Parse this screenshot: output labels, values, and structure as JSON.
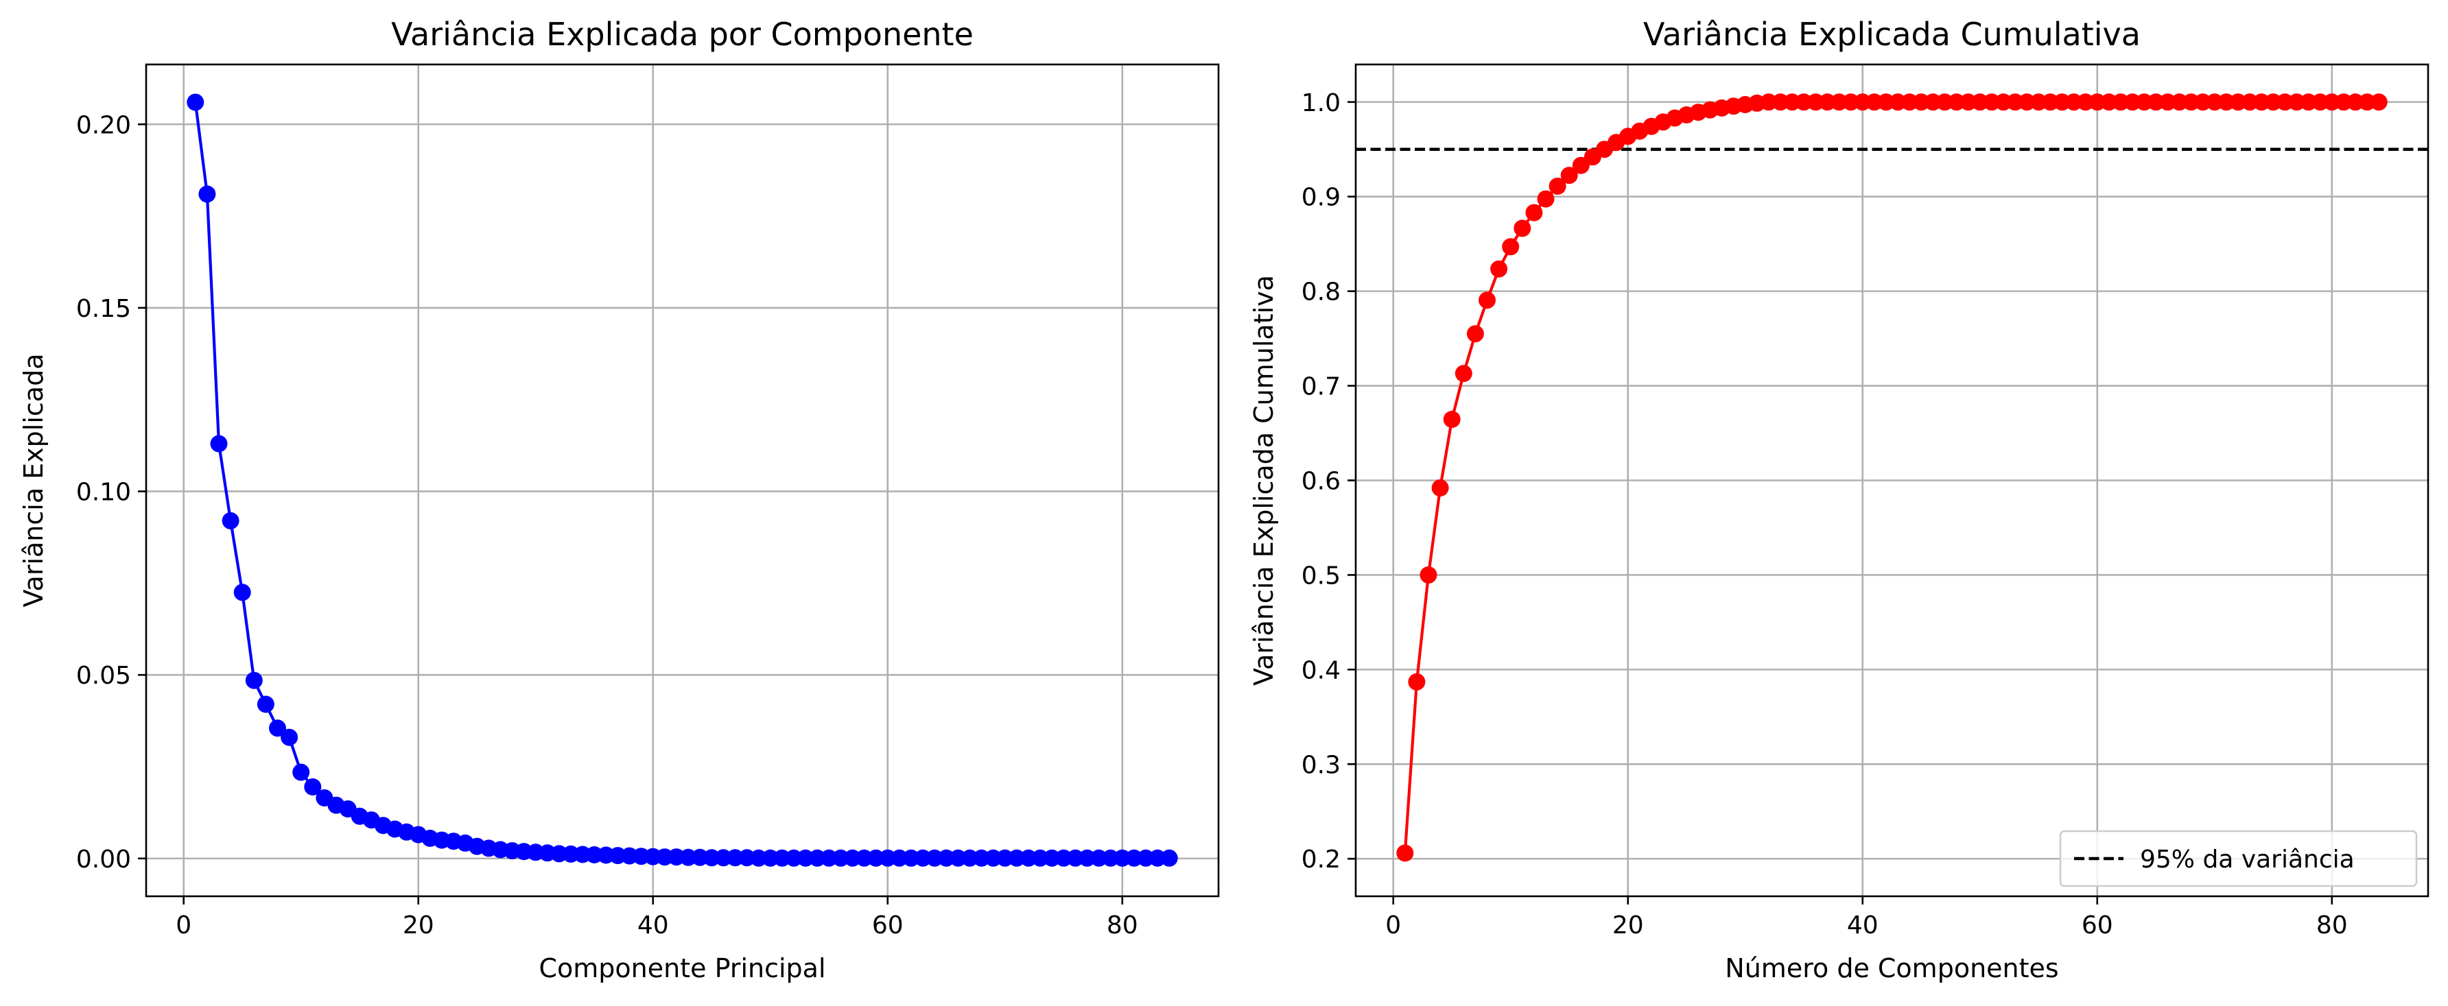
{
  "chart_data": [
    {
      "type": "line",
      "title": "Variância Explicada por Componente",
      "xlabel": "Componente Principal",
      "ylabel": "Variância Explicada",
      "xlim": [
        -3.2,
        88.2
      ],
      "ylim": [
        -0.0103,
        0.2163
      ],
      "xticks": [
        0,
        20,
        40,
        60,
        80
      ],
      "xtick_labels": [
        "0",
        "20",
        "40",
        "60",
        "80"
      ],
      "yticks": [
        0.0,
        0.05,
        0.1,
        0.15,
        0.2
      ],
      "ytick_labels": [
        "0.00",
        "0.05",
        "0.10",
        "0.15",
        "0.20"
      ],
      "grid": true,
      "series": [
        {
          "color": "#0000ff",
          "marker": "circle",
          "x": [
            1,
            2,
            3,
            4,
            5,
            6,
            7,
            8,
            9,
            10,
            11,
            12,
            13,
            14,
            15,
            16,
            17,
            18,
            19,
            20,
            21,
            22,
            23,
            24,
            25,
            26,
            27,
            28,
            29,
            30,
            31,
            32,
            33,
            34,
            35,
            36,
            37,
            38,
            39,
            40,
            41,
            42,
            43,
            44,
            45,
            46,
            47,
            48,
            49,
            50,
            51,
            52,
            53,
            54,
            55,
            56,
            57,
            58,
            59,
            60,
            61,
            62,
            63,
            64,
            65,
            66,
            67,
            68,
            69,
            70,
            71,
            72,
            73,
            74,
            75,
            76,
            77,
            78,
            79,
            80,
            81,
            82,
            83,
            84
          ],
          "y": [
            0.206,
            0.181,
            0.113,
            0.092,
            0.0725,
            0.0485,
            0.042,
            0.0355,
            0.033,
            0.0235,
            0.0195,
            0.0165,
            0.0145,
            0.0135,
            0.0115,
            0.0105,
            0.009,
            0.008,
            0.0072,
            0.0065,
            0.0055,
            0.005,
            0.0047,
            0.0042,
            0.0033,
            0.0028,
            0.0024,
            0.0021,
            0.0019,
            0.0017,
            0.0015,
            0.0013,
            0.0012,
            0.0011,
            0.001,
            0.0009,
            0.0008,
            0.0007,
            0.0006,
            0.0005,
            0.0004,
            0.0004,
            0.0003,
            0.0003,
            0.0002,
            0.0002,
            0.0002,
            0.0002,
            0.0001,
            0.0001,
            0.0001,
            0.0001,
            0.0001,
            0.0001,
            0.0001,
            0.0001,
            0.0001,
            0.0001,
            0.0001,
            0.0001,
            0.0001,
            0.0001,
            0.0001,
            0.0001,
            0.0001,
            0.0001,
            0.0001,
            0.0001,
            0.0001,
            0.0001,
            0.0001,
            0.0001,
            0.0001,
            0.0001,
            0.0001,
            0.0001,
            0.0001,
            0.0001,
            0.0001,
            0.0001,
            0.0001,
            0.0001,
            0.0001,
            0.0001
          ]
        }
      ]
    },
    {
      "type": "line",
      "title": "Variância Explicada Cumulativa",
      "xlabel": "Número de Componentes",
      "ylabel": "Variância Explicada Cumulativa",
      "xlim": [
        -3.2,
        88.2
      ],
      "ylim": [
        0.1603,
        1.0397
      ],
      "xticks": [
        0,
        20,
        40,
        60,
        80
      ],
      "xtick_labels": [
        "0",
        "20",
        "40",
        "60",
        "80"
      ],
      "yticks": [
        0.2,
        0.3,
        0.4,
        0.5,
        0.6,
        0.7,
        0.8,
        0.9,
        1.0
      ],
      "ytick_labels": [
        "0.2",
        "0.3",
        "0.4",
        "0.5",
        "0.6",
        "0.7",
        "0.8",
        "0.9",
        "1.0"
      ],
      "grid": true,
      "legend_position": "lower-right",
      "reference_line": {
        "y": 0.95,
        "style": "dashed",
        "color": "#000000",
        "label": "95% da variância"
      },
      "series": [
        {
          "color": "#ff0000",
          "marker": "circle",
          "x": [
            1,
            2,
            3,
            4,
            5,
            6,
            7,
            8,
            9,
            10,
            11,
            12,
            13,
            14,
            15,
            16,
            17,
            18,
            19,
            20,
            21,
            22,
            23,
            24,
            25,
            26,
            27,
            28,
            29,
            30,
            31,
            32,
            33,
            34,
            35,
            36,
            37,
            38,
            39,
            40,
            41,
            42,
            43,
            44,
            45,
            46,
            47,
            48,
            49,
            50,
            51,
            52,
            53,
            54,
            55,
            56,
            57,
            58,
            59,
            60,
            61,
            62,
            63,
            64,
            65,
            66,
            67,
            68,
            69,
            70,
            71,
            72,
            73,
            74,
            75,
            76,
            77,
            78,
            79,
            80,
            81,
            82,
            83,
            84
          ],
          "y": [
            0.206,
            0.387,
            0.5,
            0.592,
            0.6645,
            0.713,
            0.755,
            0.7905,
            0.8235,
            0.847,
            0.8665,
            0.883,
            0.8975,
            0.911,
            0.9225,
            0.933,
            0.942,
            0.95,
            0.9572,
            0.9637,
            0.9692,
            0.9742,
            0.9789,
            0.9831,
            0.9864,
            0.9892,
            0.9916,
            0.9937,
            0.9956,
            0.9973,
            0.9988,
            1.0,
            1.0,
            1.0,
            1.0,
            1.0,
            1.0,
            1.0,
            1.0,
            1.0,
            1.0,
            1.0,
            1.0,
            1.0,
            1.0,
            1.0,
            1.0,
            1.0,
            1.0,
            1.0,
            1.0,
            1.0,
            1.0,
            1.0,
            1.0,
            1.0,
            1.0,
            1.0,
            1.0,
            1.0,
            1.0,
            1.0,
            1.0,
            1.0,
            1.0,
            1.0,
            1.0,
            1.0,
            1.0,
            1.0,
            1.0,
            1.0,
            1.0,
            1.0,
            1.0,
            1.0,
            1.0,
            1.0,
            1.0,
            1.0,
            1.0,
            1.0,
            1.0,
            1.0
          ]
        }
      ]
    }
  ]
}
